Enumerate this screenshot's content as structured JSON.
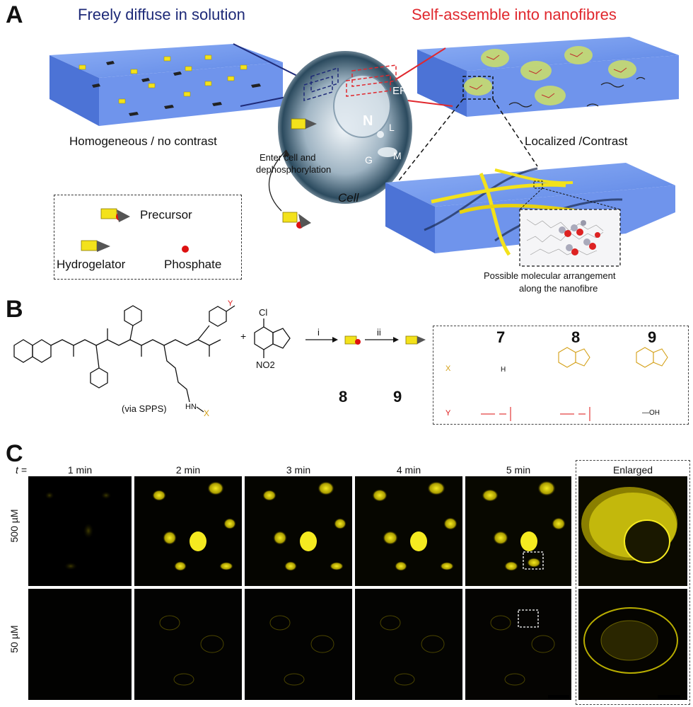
{
  "panel_a": {
    "letter": "A",
    "left_title": "Freely diffuse in solution",
    "right_title": "Self-assemble into nanofibres",
    "left_caption": "Homogeneous / no contrast",
    "right_caption": "Localized /Contrast",
    "cell_label": "Cell",
    "enter_text_1": "Enter cell and",
    "enter_text_2": "dephosphorylation",
    "organelles": {
      "er": "ER",
      "n": "N",
      "l": "L",
      "m": "M",
      "g": "G"
    },
    "legend": {
      "precursor": "Precursor",
      "hydrogelator": "Hydrogelator",
      "phosphate": "Phosphate"
    },
    "molecular_caption_1": "Possible molecular arrangement",
    "molecular_caption_2": "along the nanofibre"
  },
  "panel_b": {
    "letter": "B",
    "via": "(via SPPS)",
    "step_i": "i",
    "step_ii": "ii",
    "cmpd_8": "8",
    "cmpd_9": "9",
    "table": {
      "headers": [
        "7",
        "8",
        "9"
      ],
      "row_x_label": "X",
      "row_y_label": "Y",
      "x7": "H",
      "y9": "—OH"
    },
    "reagent_cl": "Cl",
    "reagent_no2": "NO2"
  },
  "panel_c": {
    "letter": "C",
    "t_label": "t =",
    "columns": [
      "1 min",
      "2 min",
      "3 min",
      "4 min",
      "5 min"
    ],
    "enlarged": "Enlarged",
    "rows": [
      "500 µM",
      "50 µM"
    ]
  },
  "colors": {
    "blue_title": "#1e2a78",
    "red_title": "#e0282e",
    "fluor": "#f2e600",
    "gel_blue": "#6d95ee"
  }
}
